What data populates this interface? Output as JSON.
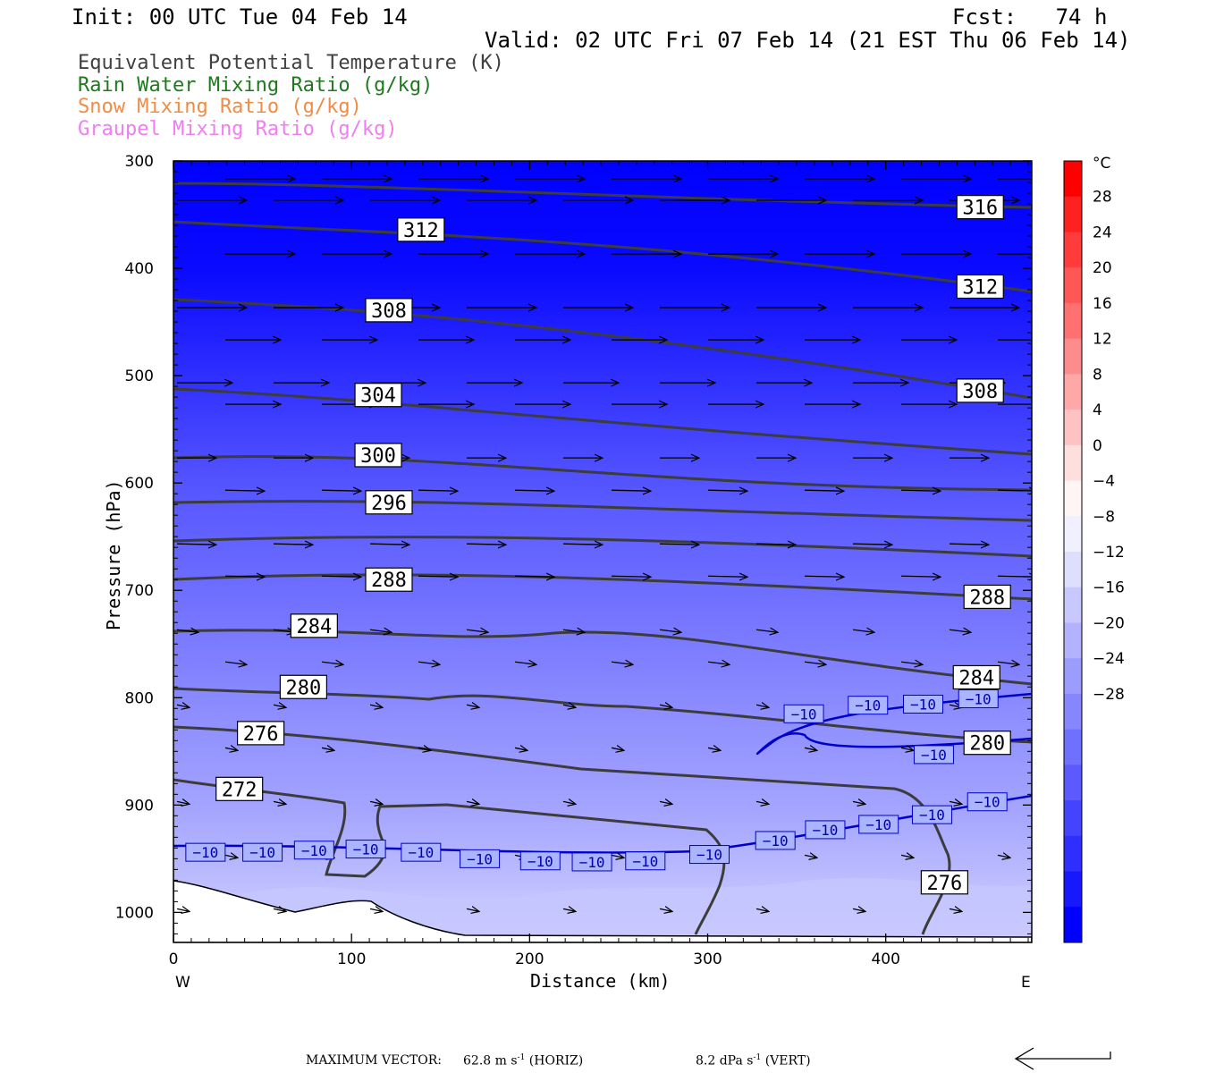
{
  "header": {
    "init": "Init: 00 UTC Tue 04 Feb 14",
    "fcst": "Fcst:   74 h",
    "valid": "Valid: 02 UTC Fri 07 Feb 14 (21 EST Thu 06 Feb 14)"
  },
  "legend": [
    {
      "label": "Equivalent Potential Temperature (K)",
      "color": "#404040"
    },
    {
      "label": "Rain Water Mixing Ratio (g/kg)",
      "color": "#1f7a1f"
    },
    {
      "label": "Snow Mixing Ratio (g/kg)",
      "color": "#f08c46"
    },
    {
      "label": "Graupel Mixing Ratio (g/kg)",
      "color": "#f07ef0"
    }
  ],
  "footer": {
    "max_vector_label": "MAXIMUM VECTOR:",
    "horiz_value": "62.8",
    "horiz_unit": "m s",
    "horiz_exp": "-1",
    "horiz_tag": "(HORIZ)",
    "vert_value": "8.2",
    "vert_unit": "dPa s",
    "vert_exp": "-1",
    "vert_tag": "(VERT)"
  },
  "chart_data": {
    "type": "cross-section",
    "xlabel": "Distance (km)",
    "ylabel": "Pressure (hPa)",
    "xlim": [
      0,
      482
    ],
    "ylim": [
      1028,
      300
    ],
    "x_ticks": [
      0,
      100,
      200,
      300,
      400
    ],
    "y_ticks": [
      300,
      400,
      500,
      600,
      700,
      800,
      900,
      1000
    ],
    "x_end_labels": {
      "left": "W",
      "right": "E"
    },
    "colorbar": {
      "unit": "°C",
      "labels": [
        28,
        24,
        20,
        16,
        12,
        8,
        4,
        0,
        -4,
        -8,
        -12,
        -16,
        -20,
        -24,
        -28
      ],
      "colors": [
        "#ff0000",
        "#ff2020",
        "#ff3b3b",
        "#ff5656",
        "#ff7070",
        "#ff8c8c",
        "#ffa8a8",
        "#ffc2c2",
        "#ffdede",
        "#fff5f5",
        "#f0f0ff",
        "#dedeff",
        "#c8c8ff",
        "#b2b2ff",
        "#9c9cff",
        "#8686ff",
        "#7070ff",
        "#5a5aff",
        "#4444ff",
        "#2e2eff",
        "#1818ff",
        "#0000ff"
      ]
    },
    "theta_e_labels": [
      {
        "value": "316",
        "x": 453,
        "p": 343
      },
      {
        "value": "312",
        "x": 139,
        "p": 364
      },
      {
        "value": "312",
        "x": 453,
        "p": 417
      },
      {
        "value": "308",
        "x": 121,
        "p": 439
      },
      {
        "value": "308",
        "x": 453,
        "p": 514
      },
      {
        "value": "304",
        "x": 115,
        "p": 518
      },
      {
        "value": "300",
        "x": 115,
        "p": 574
      },
      {
        "value": "296",
        "x": 121,
        "p": 618
      },
      {
        "value": "288",
        "x": 121,
        "p": 690
      },
      {
        "value": "288",
        "x": 457,
        "p": 706
      },
      {
        "value": "284",
        "x": 79,
        "p": 733
      },
      {
        "value": "284",
        "x": 451,
        "p": 781
      },
      {
        "value": "280",
        "x": 73,
        "p": 790
      },
      {
        "value": "280",
        "x": 457,
        "p": 842
      },
      {
        "value": "276",
        "x": 49,
        "p": 833
      },
      {
        "value": "272",
        "x": 37,
        "p": 885
      },
      {
        "value": "276",
        "x": 433,
        "p": 972
      }
    ],
    "isotherm_labels": [
      {
        "value": "−10",
        "x": 18,
        "p": 944
      },
      {
        "value": "−10",
        "x": 50,
        "p": 944
      },
      {
        "value": "−10",
        "x": 79,
        "p": 942
      },
      {
        "value": "−10",
        "x": 108,
        "p": 941
      },
      {
        "value": "−10",
        "x": 139,
        "p": 944
      },
      {
        "value": "−10",
        "x": 172,
        "p": 950
      },
      {
        "value": "−10",
        "x": 206,
        "p": 952
      },
      {
        "value": "−10",
        "x": 235,
        "p": 953
      },
      {
        "value": "−10",
        "x": 265,
        "p": 952
      },
      {
        "value": "−10",
        "x": 301,
        "p": 946
      },
      {
        "value": "−10",
        "x": 338,
        "p": 933
      },
      {
        "value": "−10",
        "x": 366,
        "p": 923
      },
      {
        "value": "−10",
        "x": 396,
        "p": 918
      },
      {
        "value": "−10",
        "x": 426,
        "p": 909
      },
      {
        "value": "−10",
        "x": 457,
        "p": 897
      },
      {
        "value": "−10",
        "x": 354,
        "p": 815
      },
      {
        "value": "−10",
        "x": 390,
        "p": 807
      },
      {
        "value": "−10",
        "x": 421,
        "p": 806
      },
      {
        "value": "−10",
        "x": 452,
        "p": 801
      },
      {
        "value": "−10",
        "x": 427,
        "p": 853
      }
    ]
  }
}
